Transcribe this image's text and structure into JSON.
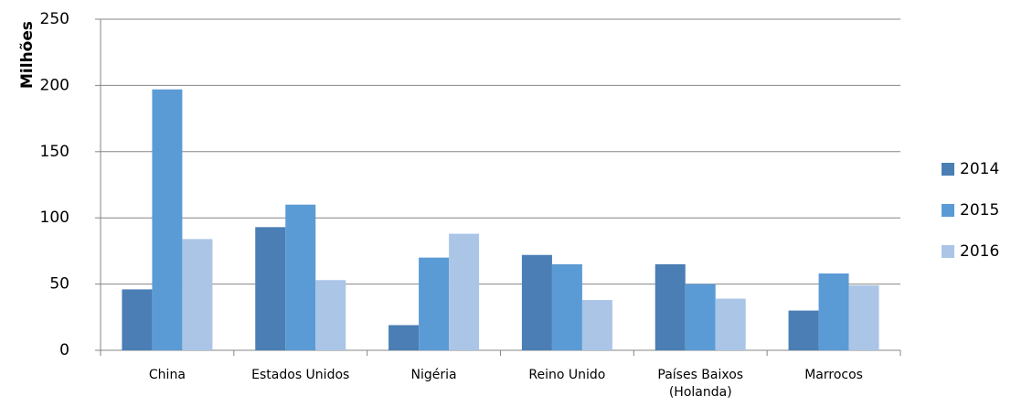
{
  "chart_data": {
    "type": "bar",
    "y_label": "Milhões",
    "categories": [
      "China",
      "Estados Unidos",
      "Nigéria",
      "Reino Unido",
      "Países Baixos (Holanda)",
      "Marrocos"
    ],
    "series": [
      {
        "name": "2014",
        "color": "#4a7eb4",
        "values": [
          46,
          93,
          19,
          72,
          65,
          30
        ]
      },
      {
        "name": "2015",
        "color": "#5b9bd5",
        "values": [
          197,
          110,
          70,
          65,
          50,
          58
        ]
      },
      {
        "name": "2016",
        "color": "#abc5e7",
        "values": [
          84,
          53,
          88,
          38,
          39,
          49
        ]
      }
    ],
    "ylim": [
      0,
      250
    ],
    "yticks": [
      0,
      50,
      100,
      150,
      200,
      250
    ],
    "grid": true,
    "legend": "right"
  }
}
